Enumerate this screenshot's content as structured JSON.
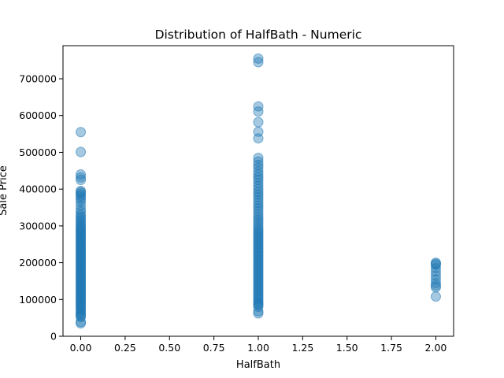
{
  "chart_data": {
    "type": "scatter",
    "title": "Distribution of HalfBath - Numeric",
    "xlabel": "HalfBath",
    "ylabel": "Sale Price",
    "xlim": [
      -0.1,
      2.1
    ],
    "ylim": [
      0,
      790000
    ],
    "xticks": [
      0.0,
      0.25,
      0.5,
      0.75,
      1.0,
      1.25,
      1.5,
      1.75,
      2.0
    ],
    "xtick_labels": [
      "0.00",
      "0.25",
      "0.50",
      "0.75",
      "1.00",
      "1.25",
      "1.50",
      "1.75",
      "2.00"
    ],
    "yticks": [
      0,
      100000,
      200000,
      300000,
      400000,
      500000,
      600000,
      700000
    ],
    "ytick_labels": [
      "0",
      "100000",
      "200000",
      "300000",
      "400000",
      "500000",
      "600000",
      "700000"
    ],
    "grid": false,
    "marker_color": "#1f77b4",
    "marker_alpha": 0.4,
    "series": [
      {
        "points": [
          [
            0,
            35000
          ],
          [
            0,
            39000
          ],
          [
            0,
            52000
          ],
          [
            0,
            55000
          ],
          [
            0,
            60000
          ],
          [
            0,
            62000
          ],
          [
            0,
            67000
          ],
          [
            0,
            72000
          ],
          [
            0,
            76000
          ],
          [
            0,
            80000
          ],
          [
            0,
            84000
          ],
          [
            0,
            88000
          ],
          [
            0,
            92000
          ],
          [
            0,
            96000
          ],
          [
            0,
            100000
          ],
          [
            0,
            104000
          ],
          [
            0,
            108000
          ],
          [
            0,
            112000
          ],
          [
            0,
            116000
          ],
          [
            0,
            120000
          ],
          [
            0,
            124000
          ],
          [
            0,
            128000
          ],
          [
            0,
            132000
          ],
          [
            0,
            136000
          ],
          [
            0,
            140000
          ],
          [
            0,
            144000
          ],
          [
            0,
            148000
          ],
          [
            0,
            152000
          ],
          [
            0,
            156000
          ],
          [
            0,
            160000
          ],
          [
            0,
            164000
          ],
          [
            0,
            168000
          ],
          [
            0,
            172000
          ],
          [
            0,
            176000
          ],
          [
            0,
            180000
          ],
          [
            0,
            184000
          ],
          [
            0,
            188000
          ],
          [
            0,
            192000
          ],
          [
            0,
            196000
          ],
          [
            0,
            200000
          ],
          [
            0,
            204000
          ],
          [
            0,
            208000
          ],
          [
            0,
            212000
          ],
          [
            0,
            216000
          ],
          [
            0,
            220000
          ],
          [
            0,
            224000
          ],
          [
            0,
            228000
          ],
          [
            0,
            232000
          ],
          [
            0,
            236000
          ],
          [
            0,
            240000
          ],
          [
            0,
            244000
          ],
          [
            0,
            248000
          ],
          [
            0,
            252000
          ],
          [
            0,
            256000
          ],
          [
            0,
            260000
          ],
          [
            0,
            264000
          ],
          [
            0,
            268000
          ],
          [
            0,
            272000
          ],
          [
            0,
            276000
          ],
          [
            0,
            280000
          ],
          [
            0,
            284000
          ],
          [
            0,
            288000
          ],
          [
            0,
            292000
          ],
          [
            0,
            296000
          ],
          [
            0,
            300000
          ],
          [
            0,
            305000
          ],
          [
            0,
            310000
          ],
          [
            0,
            315000
          ],
          [
            0,
            320000
          ],
          [
            0,
            325000
          ],
          [
            0,
            330000
          ],
          [
            0,
            338000
          ],
          [
            0,
            345000
          ],
          [
            0,
            355000
          ],
          [
            0,
            365000
          ],
          [
            0,
            372000
          ],
          [
            0,
            378000
          ],
          [
            0,
            383000
          ],
          [
            0,
            388000
          ],
          [
            0,
            392000
          ],
          [
            0,
            395000
          ],
          [
            0,
            425000
          ],
          [
            0,
            432000
          ],
          [
            0,
            440000
          ],
          [
            0,
            501000
          ],
          [
            0,
            555000
          ],
          [
            1,
            62000
          ],
          [
            1,
            68000
          ],
          [
            1,
            80000
          ],
          [
            1,
            85000
          ],
          [
            1,
            88000
          ],
          [
            1,
            92000
          ],
          [
            1,
            97000
          ],
          [
            1,
            102000
          ],
          [
            1,
            107000
          ],
          [
            1,
            112000
          ],
          [
            1,
            117000
          ],
          [
            1,
            122000
          ],
          [
            1,
            127000
          ],
          [
            1,
            132000
          ],
          [
            1,
            137000
          ],
          [
            1,
            142000
          ],
          [
            1,
            147000
          ],
          [
            1,
            152000
          ],
          [
            1,
            157000
          ],
          [
            1,
            162000
          ],
          [
            1,
            167000
          ],
          [
            1,
            172000
          ],
          [
            1,
            177000
          ],
          [
            1,
            182000
          ],
          [
            1,
            187000
          ],
          [
            1,
            192000
          ],
          [
            1,
            197000
          ],
          [
            1,
            202000
          ],
          [
            1,
            207000
          ],
          [
            1,
            212000
          ],
          [
            1,
            217000
          ],
          [
            1,
            222000
          ],
          [
            1,
            227000
          ],
          [
            1,
            232000
          ],
          [
            1,
            237000
          ],
          [
            1,
            242000
          ],
          [
            1,
            247000
          ],
          [
            1,
            252000
          ],
          [
            1,
            257000
          ],
          [
            1,
            262000
          ],
          [
            1,
            267000
          ],
          [
            1,
            272000
          ],
          [
            1,
            277000
          ],
          [
            1,
            282000
          ],
          [
            1,
            287000
          ],
          [
            1,
            292000
          ],
          [
            1,
            298000
          ],
          [
            1,
            305000
          ],
          [
            1,
            312000
          ],
          [
            1,
            318000
          ],
          [
            1,
            325000
          ],
          [
            1,
            332000
          ],
          [
            1,
            340000
          ],
          [
            1,
            348000
          ],
          [
            1,
            355000
          ],
          [
            1,
            362000
          ],
          [
            1,
            370000
          ],
          [
            1,
            378000
          ],
          [
            1,
            385000
          ],
          [
            1,
            392000
          ],
          [
            1,
            400000
          ],
          [
            1,
            408000
          ],
          [
            1,
            416000
          ],
          [
            1,
            425000
          ],
          [
            1,
            432000
          ],
          [
            1,
            440000
          ],
          [
            1,
            448000
          ],
          [
            1,
            458000
          ],
          [
            1,
            466000
          ],
          [
            1,
            475000
          ],
          [
            1,
            485000
          ],
          [
            1,
            538000
          ],
          [
            1,
            556000
          ],
          [
            1,
            582000
          ],
          [
            1,
            611000
          ],
          [
            1,
            625000
          ],
          [
            1,
            745000
          ],
          [
            1,
            755000
          ],
          [
            2,
            108000
          ],
          [
            2,
            133000
          ],
          [
            2,
            138000
          ],
          [
            2,
            145000
          ],
          [
            2,
            155000
          ],
          [
            2,
            165000
          ],
          [
            2,
            175000
          ],
          [
            2,
            185000
          ],
          [
            2,
            194000
          ],
          [
            2,
            197000
          ],
          [
            2,
            200000
          ]
        ]
      }
    ]
  }
}
